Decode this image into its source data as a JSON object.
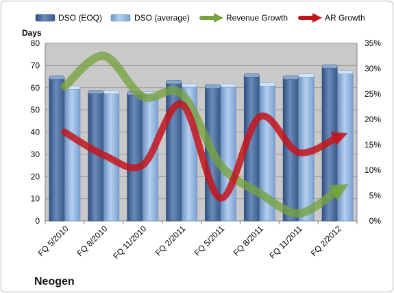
{
  "company": "Neogen",
  "colors": {
    "dso_eoq": "#4f6f9f",
    "dso_avg": "#8fb2dd",
    "revenue_growth": "#77a33f",
    "ar_growth": "#c4151c",
    "plot_background": "#c9c9c9"
  },
  "chart_data": {
    "type": "bar",
    "categories": [
      "FQ 5/2010",
      "FQ 8/2010",
      "FQ 11/2010",
      "FQ 2/2011",
      "FQ 5/2011",
      "FQ 8/2011",
      "FQ 11/2011",
      "FQ 2/2012"
    ],
    "ylabel": "Days",
    "ylim": [
      0,
      80
    ],
    "yticks": [
      0,
      10,
      20,
      30,
      40,
      50,
      60,
      70,
      80
    ],
    "y2lim": [
      0,
      35
    ],
    "y2ticks": [
      "0%",
      "5%",
      "10%",
      "15%",
      "20%",
      "25%",
      "30%",
      "35%"
    ],
    "grid": true,
    "legend_position": "top",
    "series": [
      {
        "name": "DSO (EOQ)",
        "type": "bar",
        "axis": "left",
        "values": [
          64.5,
          58,
          57.5,
          62.5,
          60.5,
          65.5,
          64.5,
          69.5
        ]
      },
      {
        "name": "DSO (average)",
        "type": "bar",
        "axis": "left",
        "values": [
          60,
          58,
          57.5,
          61,
          61,
          61.5,
          65.5,
          67
        ]
      },
      {
        "name": "Revenue Growth",
        "type": "line",
        "axis": "right",
        "unit": "%",
        "values": [
          26.5,
          32.5,
          24.5,
          25,
          11,
          5.5,
          1.5,
          6
        ]
      },
      {
        "name": "AR Growth",
        "type": "line",
        "axis": "right",
        "unit": "%",
        "values": [
          17.5,
          13,
          11,
          23,
          4.5,
          20.5,
          13.5,
          16.5
        ]
      }
    ]
  }
}
